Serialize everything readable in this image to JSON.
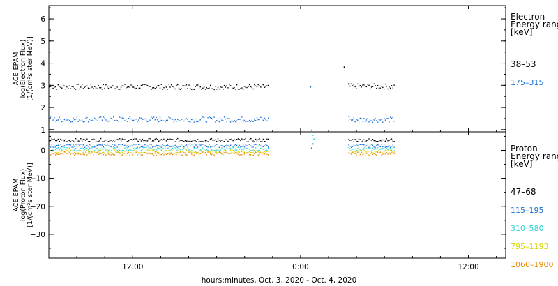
{
  "chart_data": [
    {
      "type": "scatter",
      "panel": "electron",
      "ylabel_lines": [
        "ACE EPAM",
        "log(Electron Flux)",
        "[1/(cm²s ster MeV)]"
      ],
      "ylim": [
        0.9,
        6.6
      ],
      "yticks": [
        1,
        2,
        3,
        4,
        5,
        6
      ],
      "legend_title_lines": [
        "Electron",
        "Energy range",
        "[keV]"
      ],
      "series": [
        {
          "name": "38-53",
          "color": "#000000",
          "segments": [
            {
              "x_from": "2020-10-03 06:00",
              "x_to": "2020-10-03 21:45",
              "level": 2.95
            },
            {
              "x_from": "2020-10-04 03:25",
              "x_to": "2020-10-04 06:40",
              "level": 2.97
            }
          ],
          "points": [
            {
              "x": "2020-10-04 03:05",
              "y": 3.85
            },
            {
              "x": "2020-10-04 03:25",
              "y": 3.1
            }
          ]
        },
        {
          "name": "175-315",
          "color": "#1a6fd6",
          "segments": [
            {
              "x_from": "2020-10-03 06:00",
              "x_to": "2020-10-03 21:45",
              "level": 1.48
            },
            {
              "x_from": "2020-10-04 03:25",
              "x_to": "2020-10-04 06:40",
              "level": 1.47
            }
          ],
          "points": [
            {
              "x": "2020-10-04 00:40",
              "y": 2.95
            },
            {
              "x": "2020-10-04 00:45",
              "y": 1.0
            },
            {
              "x": "2020-10-04 03:25",
              "y": 1.62
            }
          ]
        }
      ]
    },
    {
      "type": "scatter",
      "panel": "proton",
      "ylabel_lines": [
        "ACE EPAM",
        "log(Proton Flux)",
        "[1/(cm²s ster MeV)]"
      ],
      "ylim": [
        -38.5,
        6.6
      ],
      "yticks": [
        0,
        -10,
        -20,
        -30
      ],
      "legend_title_lines": [
        "Proton",
        "Energy range",
        "[keV]"
      ],
      "series": [
        {
          "name": "47-68",
          "color": "#000000",
          "segments": [
            {
              "x_from": "2020-10-03 06:00",
              "x_to": "2020-10-03 21:45",
              "level": 3.8
            },
            {
              "x_from": "2020-10-04 03:25",
              "x_to": "2020-10-04 06:40",
              "level": 3.8
            }
          ]
        },
        {
          "name": "115-195",
          "color": "#1a6fd6",
          "segments": [
            {
              "x_from": "2020-10-03 06:00",
              "x_to": "2020-10-03 21:45",
              "level": 1.8
            },
            {
              "x_from": "2020-10-04 03:25",
              "x_to": "2020-10-04 06:40",
              "level": 1.8
            }
          ],
          "points": [
            {
              "x": "2020-10-04 00:45",
              "y": 1.0
            },
            {
              "x": "2020-10-04 00:50",
              "y": 2.5
            }
          ]
        },
        {
          "name": "310-580",
          "color": "#2fd4d4",
          "segments": [
            {
              "x_from": "2020-10-03 06:00",
              "x_to": "2020-10-03 21:45",
              "level": 0.6
            },
            {
              "x_from": "2020-10-04 03:25",
              "x_to": "2020-10-04 06:40",
              "level": 0.6
            }
          ],
          "points": [
            {
              "x": "2020-10-04 00:50",
              "y": 5.6
            },
            {
              "x": "2020-10-04 00:55",
              "y": 4.2
            }
          ]
        },
        {
          "name": "795-1193",
          "color": "#d6d600",
          "segments": [
            {
              "x_from": "2020-10-03 06:00",
              "x_to": "2020-10-03 21:45",
              "level": -0.3
            },
            {
              "x_from": "2020-10-04 03:25",
              "x_to": "2020-10-04 06:40",
              "level": -0.3
            }
          ]
        },
        {
          "name": "1060-1900",
          "color": "#e88a00",
          "segments": [
            {
              "x_from": "2020-10-03 06:00",
              "x_to": "2020-10-03 21:45",
              "level": -1.0
            },
            {
              "x_from": "2020-10-04 03:25",
              "x_to": "2020-10-04 06:40",
              "level": -1.0
            }
          ]
        }
      ]
    }
  ],
  "x_axis": {
    "xlim": [
      "2020-10-03 06:00",
      "2020-10-04 14:40"
    ],
    "tick_values": [
      "2020-10-03 12:00",
      "2020-10-04 00:00",
      "2020-10-04 12:00"
    ],
    "tick_labels": [
      "12:00",
      "0:00",
      "12:00"
    ],
    "label": "hours:minutes, Oct.  3, 2020 - Oct.  4, 2020"
  },
  "grid": false,
  "legend_placement": "right of each panel"
}
